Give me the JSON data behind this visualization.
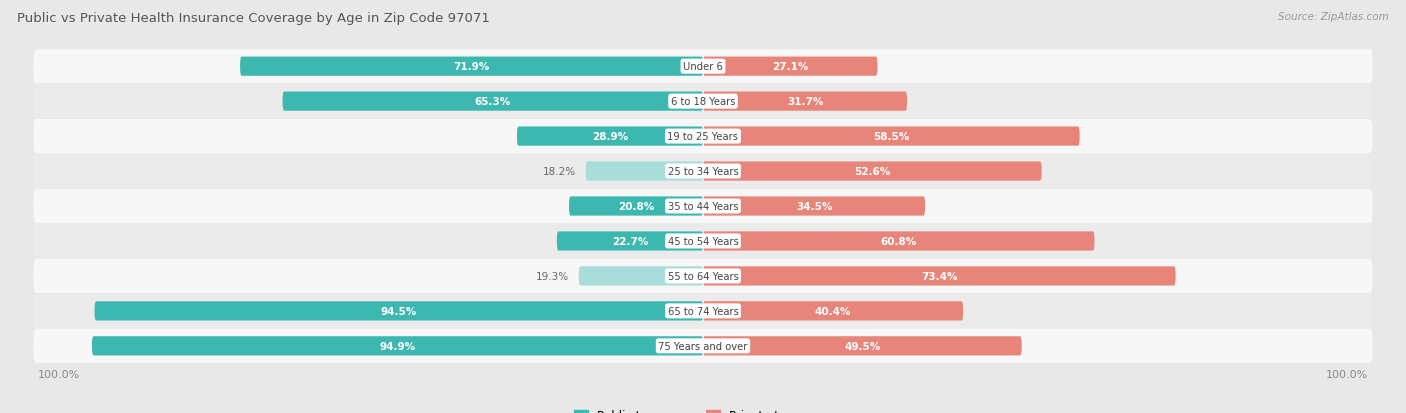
{
  "title": "Public vs Private Health Insurance Coverage by Age in Zip Code 97071",
  "source": "Source: ZipAtlas.com",
  "categories": [
    "Under 6",
    "6 to 18 Years",
    "19 to 25 Years",
    "25 to 34 Years",
    "35 to 44 Years",
    "45 to 54 Years",
    "55 to 64 Years",
    "65 to 74 Years",
    "75 Years and over"
  ],
  "public_values": [
    71.9,
    65.3,
    28.9,
    18.2,
    20.8,
    22.7,
    19.3,
    94.5,
    94.9
  ],
  "private_values": [
    27.1,
    31.7,
    58.5,
    52.6,
    34.5,
    60.8,
    73.4,
    40.4,
    49.5
  ],
  "public_color": "#3db8b0",
  "private_color": "#e8857a",
  "public_light_color": "#a8ddd9",
  "private_light_color": "#f2b8b0",
  "bg_color": "#e8e8e8",
  "row_bg_white": "#f7f7f7",
  "row_bg_gray": "#ebebeb",
  "title_color": "#555555",
  "source_color": "#999999",
  "label_white": "#ffffff",
  "label_dark": "#666666",
  "axis_label_color": "#888888",
  "max_value": 100.0,
  "bar_height": 0.55,
  "label_threshold": 20.0
}
